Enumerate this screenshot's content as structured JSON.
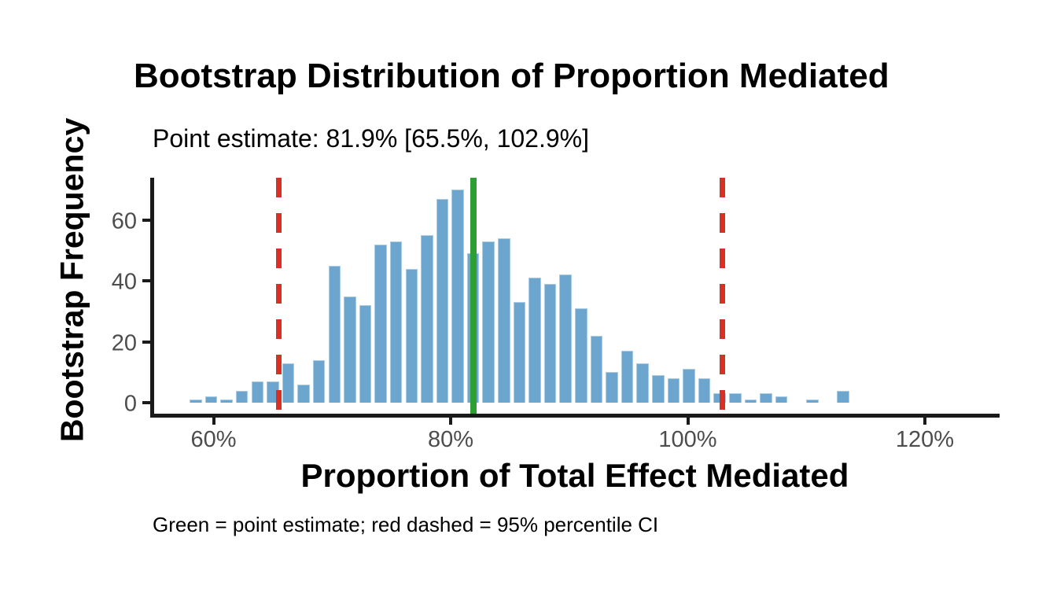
{
  "chart_data": {
    "type": "bar",
    "subtype": "histogram",
    "title": "Bootstrap Distribution of Proportion Mediated",
    "subtitle": "Point estimate: 81.9% [65.5%, 102.9%]",
    "caption": "Green = point estimate; red dashed = 95% percentile CI",
    "xlabel": "Proportion of Total Effect Mediated",
    "ylabel": "Bootstrap Frequency",
    "x_unit": "%",
    "bin_width_pct": 1.3,
    "bin_centers_pct": [
      58.5,
      59.8,
      61.1,
      62.4,
      63.7,
      65.0,
      66.3,
      67.6,
      68.9,
      70.2,
      71.5,
      72.8,
      74.1,
      75.4,
      76.7,
      78.0,
      79.3,
      80.6,
      81.9,
      83.2,
      84.5,
      85.8,
      87.1,
      88.4,
      89.7,
      91.0,
      92.3,
      93.6,
      94.9,
      96.2,
      97.5,
      98.8,
      100.1,
      101.4,
      102.7,
      104.0,
      105.3,
      106.6,
      107.9,
      109.2,
      110.5,
      111.8,
      113.1
    ],
    "frequencies": [
      1,
      2,
      1,
      4,
      7,
      7,
      13,
      6,
      14,
      45,
      35,
      32,
      52,
      53,
      44,
      55,
      67,
      70,
      49,
      53,
      54,
      33,
      41,
      39,
      42,
      31,
      22,
      10,
      17,
      13,
      9,
      8,
      11,
      8,
      3,
      3,
      1,
      3,
      2,
      0,
      1,
      0,
      4
    ],
    "point_estimate_pct": 81.9,
    "ci_95_pct": [
      65.5,
      102.9
    ],
    "x_ticks": {
      "values": [
        60,
        80,
        100,
        120
      ],
      "labels": [
        "60%",
        "80%",
        "100%",
        "120%"
      ]
    },
    "y_ticks": {
      "values": [
        0,
        20,
        40,
        60
      ],
      "labels": [
        "0",
        "20",
        "40",
        "60"
      ]
    },
    "xlim_pct": [
      54.7,
      126.3
    ],
    "ylim": [
      0,
      74
    ],
    "grid": false,
    "legend_position": "none",
    "colors": {
      "bar_fill": "#6ca5ce",
      "bar_border": "#a9cde6",
      "estimate_line": "#2e9f32",
      "ci_line": "#d93025",
      "axis": "#1a1a1a",
      "tick_label": "#4d4d4d",
      "text": "#000000"
    }
  }
}
